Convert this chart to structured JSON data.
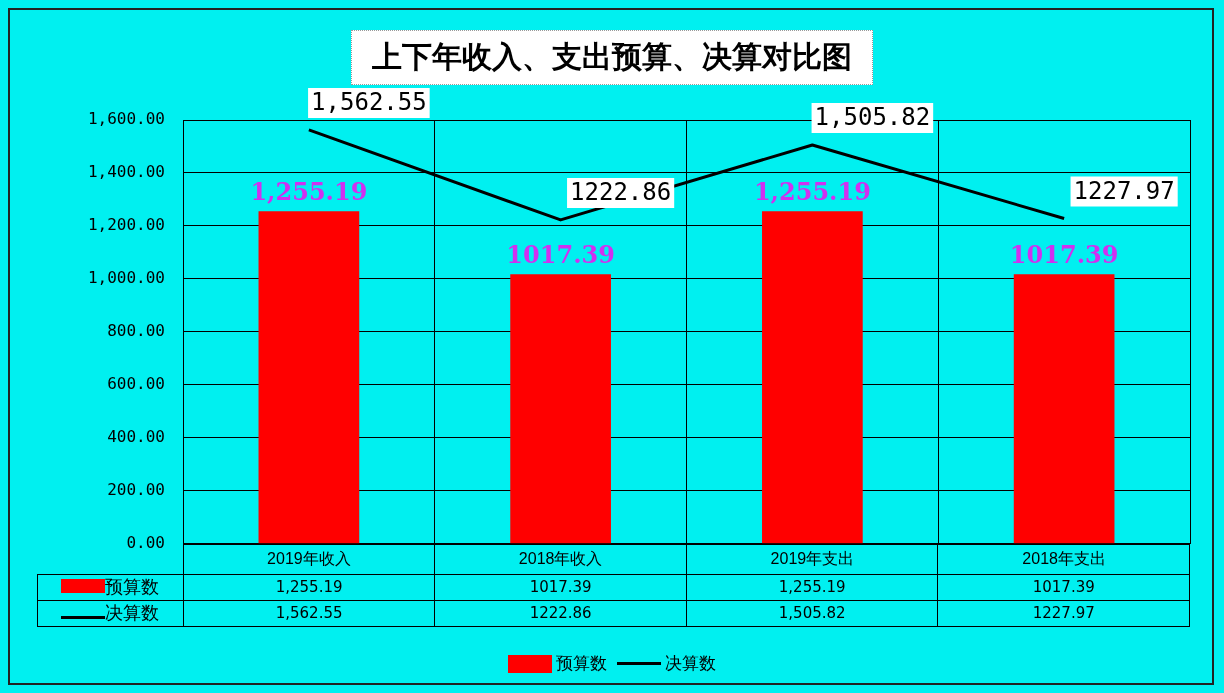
{
  "chart_data": {
    "type": "bar",
    "title": "上下年收入、支出预算、决算对比图",
    "categories": [
      "2019年收入",
      "2018年收入",
      "2019年支出",
      "2018年支出"
    ],
    "series": [
      {
        "name": "预算数",
        "color": "#ff0000",
        "values": [
          1255.19,
          1017.39,
          1255.19,
          1017.39
        ],
        "value_labels": [
          "1,255.19",
          "1017.39",
          "1,255.19",
          "1017.39"
        ]
      },
      {
        "name": "决算数",
        "type": "line",
        "color": "#000000",
        "values": [
          1562.55,
          1222.86,
          1505.82,
          1227.97
        ],
        "value_labels": [
          "1,562.55",
          "1222.86",
          "1,505.82",
          "1227.97"
        ]
      }
    ],
    "ylim": [
      0,
      1600
    ],
    "yticks": [
      {
        "value": 0,
        "label": "0.00"
      },
      {
        "value": 200,
        "label": "200.00"
      },
      {
        "value": 400,
        "label": "400.00"
      },
      {
        "value": 600,
        "label": "600.00"
      },
      {
        "value": 800,
        "label": "800.00"
      },
      {
        "value": 1000,
        "label": "1,000.00"
      },
      {
        "value": 1200,
        "label": "1,200.00"
      },
      {
        "value": 1400,
        "label": "1,400.00"
      },
      {
        "value": 1600,
        "label": "1,600.00"
      }
    ],
    "grid": true,
    "legend": "bottom",
    "marker": "none"
  }
}
